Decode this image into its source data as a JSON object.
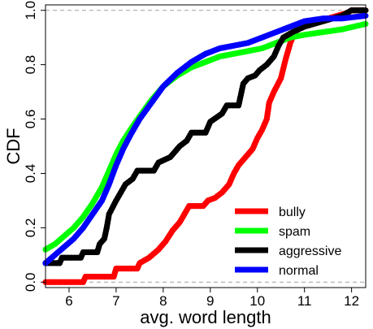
{
  "chart_data": {
    "type": "line",
    "title": "",
    "xlabel": "avg. word length",
    "ylabel": "CDF",
    "xlim": [
      5.5,
      12.3
    ],
    "ylim": [
      -0.02,
      1.02
    ],
    "xticks": [
      6,
      7,
      8,
      9,
      10,
      11,
      12
    ],
    "xtick_labels": [
      "6",
      "7",
      "8",
      "9",
      "10",
      "11",
      "12"
    ],
    "yticks": [
      0.0,
      0.2,
      0.4,
      0.6,
      0.8,
      1.0
    ],
    "ytick_labels": [
      "0.0",
      "0.2",
      "0.4",
      "0.6",
      "0.8",
      "1.0"
    ],
    "reference_lines": [
      0,
      1
    ],
    "legend_position": "bottom-right",
    "grid": false,
    "series": [
      {
        "name": "bully",
        "color": "#ff0000",
        "points": [
          [
            5.5,
            0.0
          ],
          [
            6.3,
            0.0
          ],
          [
            6.35,
            0.02
          ],
          [
            6.95,
            0.02
          ],
          [
            7.0,
            0.05
          ],
          [
            7.45,
            0.05
          ],
          [
            7.5,
            0.07
          ],
          [
            7.7,
            0.09
          ],
          [
            7.9,
            0.12
          ],
          [
            8.05,
            0.15
          ],
          [
            8.2,
            0.19
          ],
          [
            8.35,
            0.22
          ],
          [
            8.45,
            0.25
          ],
          [
            8.55,
            0.28
          ],
          [
            8.85,
            0.28
          ],
          [
            8.95,
            0.3
          ],
          [
            9.1,
            0.31
          ],
          [
            9.25,
            0.33
          ],
          [
            9.4,
            0.36
          ],
          [
            9.5,
            0.4
          ],
          [
            9.6,
            0.43
          ],
          [
            9.75,
            0.46
          ],
          [
            9.9,
            0.49
          ],
          [
            10.0,
            0.53
          ],
          [
            10.1,
            0.56
          ],
          [
            10.2,
            0.6
          ],
          [
            10.25,
            0.66
          ],
          [
            10.35,
            0.7
          ],
          [
            10.5,
            0.75
          ],
          [
            10.6,
            0.82
          ],
          [
            10.7,
            0.88
          ],
          [
            10.8,
            0.92
          ],
          [
            11.0,
            0.95
          ],
          [
            11.5,
            0.97
          ],
          [
            11.9,
            0.99
          ],
          [
            12.0,
            1.0
          ],
          [
            12.3,
            1.0
          ]
        ]
      },
      {
        "name": "spam",
        "color": "#00ff00",
        "points": [
          [
            5.5,
            0.12
          ],
          [
            5.7,
            0.14
          ],
          [
            5.9,
            0.17
          ],
          [
            6.1,
            0.2
          ],
          [
            6.3,
            0.24
          ],
          [
            6.5,
            0.29
          ],
          [
            6.7,
            0.35
          ],
          [
            6.85,
            0.41
          ],
          [
            7.0,
            0.47
          ],
          [
            7.15,
            0.52
          ],
          [
            7.3,
            0.56
          ],
          [
            7.5,
            0.61
          ],
          [
            7.75,
            0.67
          ],
          [
            8.0,
            0.72
          ],
          [
            8.3,
            0.76
          ],
          [
            8.6,
            0.79
          ],
          [
            8.9,
            0.81
          ],
          [
            9.2,
            0.83
          ],
          [
            9.5,
            0.84
          ],
          [
            9.8,
            0.85
          ],
          [
            10.1,
            0.86
          ],
          [
            10.4,
            0.88
          ],
          [
            10.7,
            0.9
          ],
          [
            11.0,
            0.91
          ],
          [
            11.4,
            0.92
          ],
          [
            11.8,
            0.93
          ],
          [
            12.3,
            0.95
          ]
        ]
      },
      {
        "name": "aggressive",
        "color": "#000000",
        "points": [
          [
            5.5,
            0.07
          ],
          [
            5.8,
            0.07
          ],
          [
            5.85,
            0.09
          ],
          [
            6.25,
            0.09
          ],
          [
            6.3,
            0.11
          ],
          [
            6.6,
            0.11
          ],
          [
            6.65,
            0.14
          ],
          [
            6.75,
            0.16
          ],
          [
            6.8,
            0.2
          ],
          [
            6.85,
            0.25
          ],
          [
            7.0,
            0.3
          ],
          [
            7.1,
            0.33
          ],
          [
            7.2,
            0.36
          ],
          [
            7.35,
            0.38
          ],
          [
            7.45,
            0.41
          ],
          [
            7.8,
            0.41
          ],
          [
            7.9,
            0.44
          ],
          [
            8.15,
            0.46
          ],
          [
            8.35,
            0.5
          ],
          [
            8.5,
            0.52
          ],
          [
            8.6,
            0.55
          ],
          [
            8.9,
            0.55
          ],
          [
            9.0,
            0.59
          ],
          [
            9.25,
            0.62
          ],
          [
            9.35,
            0.65
          ],
          [
            9.6,
            0.65
          ],
          [
            9.65,
            0.69
          ],
          [
            9.7,
            0.73
          ],
          [
            9.8,
            0.75
          ],
          [
            9.95,
            0.76
          ],
          [
            10.05,
            0.78
          ],
          [
            10.2,
            0.8
          ],
          [
            10.35,
            0.83
          ],
          [
            10.45,
            0.87
          ],
          [
            10.55,
            0.9
          ],
          [
            10.75,
            0.92
          ],
          [
            11.0,
            0.94
          ],
          [
            11.4,
            0.96
          ],
          [
            11.8,
            0.98
          ],
          [
            12.0,
            1.0
          ],
          [
            12.3,
            1.0
          ]
        ]
      },
      {
        "name": "normal",
        "color": "#0000ff",
        "points": [
          [
            5.5,
            0.07
          ],
          [
            5.7,
            0.1
          ],
          [
            5.9,
            0.13
          ],
          [
            6.1,
            0.16
          ],
          [
            6.3,
            0.2
          ],
          [
            6.5,
            0.25
          ],
          [
            6.7,
            0.3
          ],
          [
            6.85,
            0.36
          ],
          [
            7.0,
            0.43
          ],
          [
            7.15,
            0.49
          ],
          [
            7.3,
            0.54
          ],
          [
            7.5,
            0.6
          ],
          [
            7.75,
            0.66
          ],
          [
            8.0,
            0.72
          ],
          [
            8.3,
            0.77
          ],
          [
            8.6,
            0.81
          ],
          [
            8.9,
            0.84
          ],
          [
            9.2,
            0.86
          ],
          [
            9.5,
            0.87
          ],
          [
            9.8,
            0.88
          ],
          [
            10.1,
            0.9
          ],
          [
            10.4,
            0.92
          ],
          [
            10.7,
            0.94
          ],
          [
            11.0,
            0.96
          ],
          [
            11.4,
            0.97
          ],
          [
            11.8,
            0.97
          ],
          [
            12.3,
            0.98
          ]
        ]
      }
    ]
  }
}
